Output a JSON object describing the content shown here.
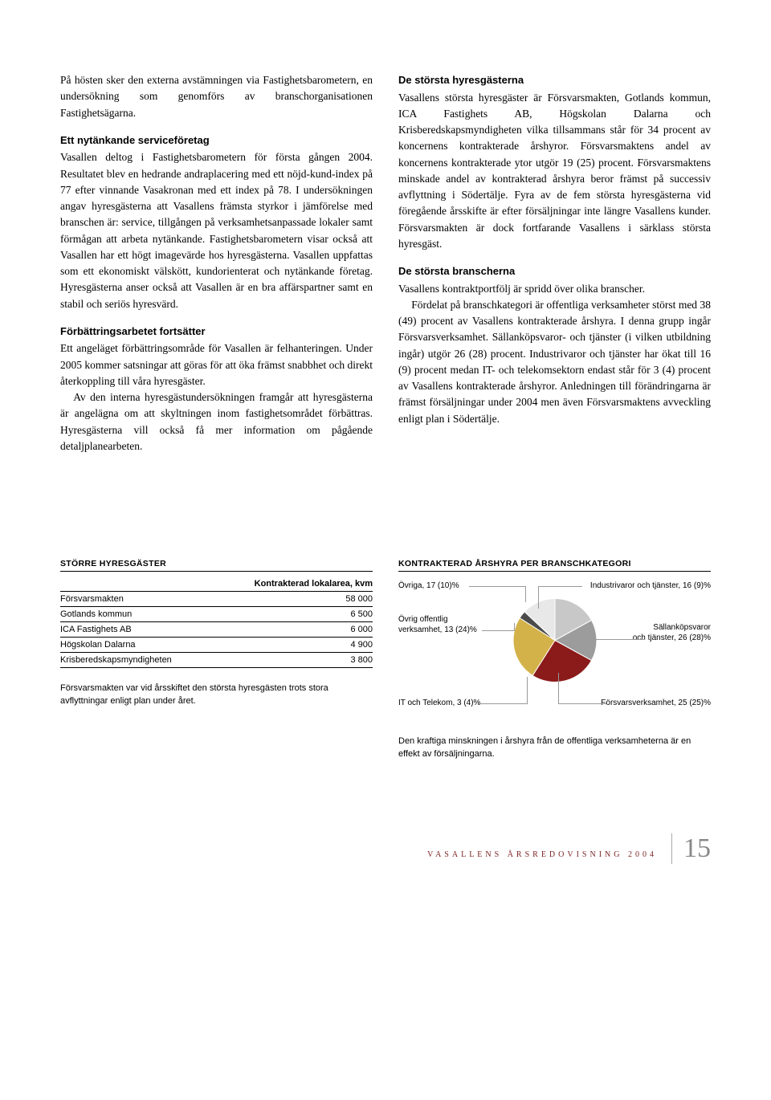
{
  "col1": {
    "p1": "På hösten sker den externa avstämningen via Fastighetsbarometern, en undersökning som genomförs av branschorganisationen Fastighetsägarna.",
    "h1": "Ett nytänkande serviceföretag",
    "p2": "Vasallen deltog i Fastighetsbarometern för första gången 2004. Resultatet blev en hedrande andraplacering med ett nöjd-kund-index på 77 efter vinnande Vasakronan med ett index på 78. I undersökningen angav hyresgästerna att Vasallens främsta styrkor i jämförelse med branschen är: service, tillgången på verksamhetsanpassade lokaler samt förmågan att arbeta nytänkande. Fastighetsbarometern visar också att Vasallen har ett högt imagevärde hos hyresgästerna. Vasallen uppfattas som ett ekonomiskt välskött, kundorienterat och nytänkande företag. Hyresgästerna anser också att Vasallen är en bra affärspartner samt en stabil och seriös hyresvärd.",
    "h2": "Förbättringsarbetet fortsätter",
    "p3": "Ett angeläget förbättringsområde för Vasallen är felhanteringen. Under 2005 kommer satsningar att göras för att öka främst snabbhet och direkt återkoppling till våra hyresgäster.",
    "p4": "Av den interna hyresgästundersökningen framgår att hyresgästerna är angelägna om att skyltningen inom fastighetsområdet förbättras. Hyresgästerna vill också få mer information om pågående detaljplanearbeten."
  },
  "col2": {
    "h1": "De största hyresgästerna",
    "p1": "Vasallens största hyresgäster är Försvarsmakten, Gotlands kommun, ICA Fastighets AB, Högskolan Dalarna och Krisberedskapsmyndigheten vilka tillsammans står för 34 procent av koncernens kontrakterade årshyror. Försvarsmaktens andel av koncernens kontrakterade ytor utgör 19 (25) procent. Försvarsmaktens minskade andel av kontrakterad årshyra beror främst på successiv avflyttning i Södertälje. Fyra av de fem största hyresgästerna vid föregående årsskifte är efter försäljningar inte längre Vasallens kunder. Försvarsmakten är dock fortfarande Vasallens i särklass största hyresgäst.",
    "h2": "De största branscherna",
    "p2": "Vasallens kontraktportfölj är spridd över olika branscher.",
    "p3": "Fördelat på branschkategori är offentliga verksamheter störst med 38 (49) procent av Vasallens kontrakterade årshyra. I denna grupp ingår Försvarsverksamhet. Sällanköpsvaror- och tjänster (i vilken utbildning ingår) utgör 26 (28) procent. Industrivaror och tjänster har ökat till 16 (9) procent medan IT- och telekomsektorn endast står för 3 (4) procent av Vasallens kontrakterade årshyror. Anledningen till förändringarna är främst försäljningar under 2004 men även Försvarsmaktens avveckling enligt plan i Södertälje."
  },
  "table": {
    "title": "STÖRRE HYRESGÄSTER",
    "col_header": "Kontrakterad lokalarea, kvm",
    "rows": [
      {
        "name": "Försvarsmakten",
        "value": "58 000"
      },
      {
        "name": "Gotlands kommun",
        "value": "6 500"
      },
      {
        "name": "ICA Fastighets AB",
        "value": "6 000"
      },
      {
        "name": "Högskolan Dalarna",
        "value": "4 900"
      },
      {
        "name": "Krisberedskapsmyndigheten",
        "value": "3 800"
      }
    ],
    "note": "Försvarsmakten var vid årsskiftet den största hyresgästen trots stora avflyttningar enligt plan under året."
  },
  "chart": {
    "title": "KONTRAKTERAD ÅRSHYRA PER BRANSCHKATEGORI",
    "type": "pie",
    "background_color": "#ffffff",
    "slices": [
      {
        "label": "Övriga, 17 (10)%",
        "value": 17,
        "color": "#c8c8c8"
      },
      {
        "label": "Industrivaror och tjänster, 16 (9)%",
        "value": 16,
        "color": "#9c9c9c"
      },
      {
        "label": "Sällanköpsvaror och tjänster, 26 (28)%",
        "value": 26,
        "color": "#8b1a1a"
      },
      {
        "label": "Försvarsverksamhet, 25 (25)%",
        "value": 25,
        "color": "#d4b24a"
      },
      {
        "label": "IT och Telekom, 3 (4)%",
        "value": 3,
        "color": "#4a4a4a"
      },
      {
        "label": "Övrig offentlig verksamhet, 13 (24)%",
        "value": 13,
        "color": "#e8e8e8"
      }
    ],
    "label_left_1": "Övriga, 17 (10)%",
    "label_left_2a": "Övrig offentlig",
    "label_left_2b": "verksamhet, 13 (24)%",
    "label_left_3": "IT och Telekom, 3 (4)%",
    "label_right_1": "Industrivaror och tjänster, 16 (9)%",
    "label_right_2a": "Sällanköpsvaror",
    "label_right_2b": "och tjänster, 26 (28)%",
    "label_right_3": "Försvarsverksamhet, 25 (25)%",
    "label_fontsize": 10,
    "radius": 52,
    "note": "Den kraftiga minskningen i årshyra från de offentliga verksamheterna är en effekt av försäljningarna."
  },
  "footer": {
    "text": "VASALLENS ÅRSREDOVISNING 2004",
    "page": "15"
  }
}
